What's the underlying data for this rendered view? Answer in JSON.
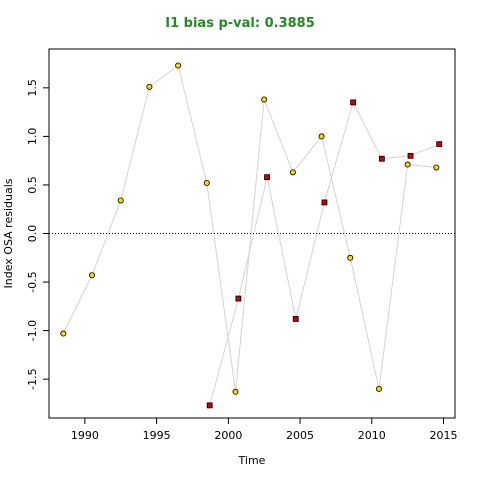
{
  "chart_data": {
    "type": "scatter",
    "title": "I1 bias p-val: 0.3885",
    "title_color": "#228B22",
    "xlabel": "Time",
    "ylabel": "Index OSA residuals",
    "xlim": [
      1987.5,
      2015.8
    ],
    "ylim": [
      -1.9,
      1.9
    ],
    "xticks": [
      1990,
      1995,
      2000,
      2005,
      2010,
      2015
    ],
    "yticks": [
      -1.5,
      -1.0,
      -0.5,
      0.0,
      0.5,
      1.0,
      1.5
    ],
    "ytick_labels": [
      "-1.5",
      "-1.0",
      "-0.5",
      "0.0",
      "0.5",
      "1.0",
      "1.5"
    ],
    "reference_line": {
      "y": 0,
      "style": "dotted"
    },
    "grid": false,
    "series": [
      {
        "marker": "circle",
        "fill_color": "#FFD700",
        "line_color": "#d3d3d3",
        "x": [
          1988.5,
          1990.5,
          1992.5,
          1994.5,
          1996.5,
          1998.5,
          2000.5,
          2002.5,
          2004.5,
          2006.5,
          2008.5,
          2010.5,
          2012.5,
          2014.5
        ],
        "y": [
          -1.03,
          -0.43,
          0.34,
          1.51,
          1.73,
          0.52,
          -1.63,
          1.38,
          0.63,
          1.0,
          -0.25,
          -1.6,
          0.71,
          0.68
        ]
      },
      {
        "marker": "square",
        "fill_color": "#CC0000",
        "line_color": "#d3d3d3",
        "x": [
          1998.7,
          2000.7,
          2002.7,
          2004.7,
          2006.7,
          2008.7,
          2010.7,
          2012.7,
          2014.7
        ],
        "y": [
          -1.77,
          -0.67,
          0.58,
          -0.88,
          0.32,
          1.35,
          0.77,
          0.8,
          0.92
        ]
      }
    ]
  }
}
